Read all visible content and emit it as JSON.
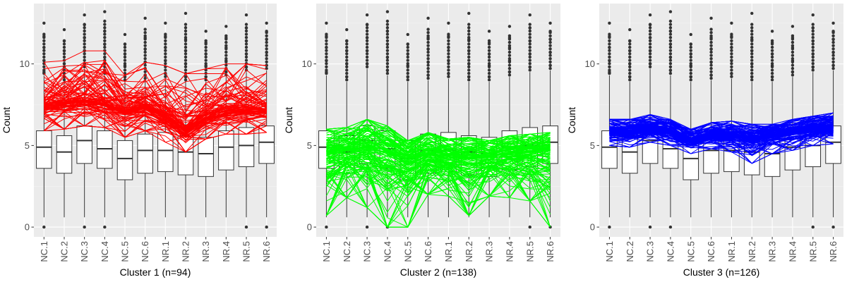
{
  "chart_data": [
    {
      "type": "box+line",
      "title": "",
      "xlabel": "Cluster 1 (n=94)",
      "ylabel": "Count",
      "ylim": [
        -0.6,
        13.7
      ],
      "yticks": [
        0,
        5,
        10
      ],
      "grid": true,
      "line_color": "#ff0000",
      "n_lines": 94,
      "categories": [
        "NC.1",
        "NC.2",
        "NC.3",
        "NC.4",
        "NC.5",
        "NC.6",
        "NR.1",
        "NR.2",
        "NR.3",
        "NR.4",
        "NR.5",
        "NR.6"
      ],
      "line_band": {
        "low": [
          5.9,
          6.0,
          6.2,
          6.1,
          5.5,
          5.9,
          5.2,
          4.6,
          5.4,
          5.7,
          5.7,
          5.8
        ],
        "median": [
          7.5,
          7.6,
          7.8,
          7.6,
          7.1,
          7.4,
          6.8,
          6.0,
          6.7,
          7.1,
          7.2,
          7.2
        ],
        "high": [
          10.1,
          10.2,
          10.8,
          10.8,
          9.3,
          10.1,
          9.9,
          9.4,
          9.7,
          10.0,
          10.0,
          9.9
        ]
      },
      "boxes": [
        {
          "q1": 3.6,
          "median": 4.9,
          "q3": 5.9,
          "whisker_low": 0.6,
          "whisker_high": 9.3,
          "outliers_high": [
            9.5,
            10.2,
            11.0,
            11.7,
            12.5
          ],
          "outliers_low": [
            0
          ]
        },
        {
          "q1": 3.3,
          "median": 4.6,
          "q3": 5.6,
          "whisker_low": 0.6,
          "whisker_high": 8.9,
          "outliers_high": [
            9.2,
            10.0,
            10.8,
            11.4,
            12.1
          ],
          "outliers_low": []
        },
        {
          "q1": 3.9,
          "median": 5.3,
          "q3": 6.2,
          "whisker_low": 0.6,
          "whisker_high": 9.7,
          "outliers_high": [
            10.0,
            10.8,
            11.6,
            12.4,
            13.0
          ],
          "outliers_low": [
            0
          ]
        },
        {
          "q1": 3.6,
          "median": 4.8,
          "q3": 5.9,
          "whisker_low": 0.6,
          "whisker_high": 9.3,
          "outliers_high": [
            9.6,
            10.4,
            11.2,
            12.0,
            13.2
          ],
          "outliers_low": [
            0
          ]
        },
        {
          "q1": 2.9,
          "median": 4.2,
          "q3": 5.3,
          "whisker_low": 0.6,
          "whisker_high": 8.9,
          "outliers_high": [
            9.2,
            9.9,
            10.6,
            11.2,
            11.8
          ],
          "outliers_low": []
        },
        {
          "q1": 3.3,
          "median": 4.7,
          "q3": 5.7,
          "whisker_low": 0.6,
          "whisker_high": 9.0,
          "outliers_high": [
            9.3,
            10.1,
            10.9,
            11.6,
            12.8
          ],
          "outliers_low": []
        },
        {
          "q1": 3.4,
          "median": 4.7,
          "q3": 5.8,
          "whisker_low": 0.6,
          "whisker_high": 9.1,
          "outliers_high": [
            9.4,
            10.2,
            11.0,
            11.7,
            12.5
          ],
          "outliers_low": []
        },
        {
          "q1": 3.2,
          "median": 4.6,
          "q3": 5.6,
          "whisker_low": 0.6,
          "whisker_high": 8.9,
          "outliers_high": [
            9.2,
            10.0,
            10.8,
            11.5,
            13.1
          ],
          "outliers_low": []
        },
        {
          "q1": 3.1,
          "median": 4.5,
          "q3": 5.5,
          "whisker_low": 0.6,
          "whisker_high": 8.9,
          "outliers_high": [
            9.2,
            9.9,
            10.6,
            11.3,
            12.0
          ],
          "outliers_low": []
        },
        {
          "q1": 3.5,
          "median": 4.9,
          "q3": 5.9,
          "whisker_low": 0.6,
          "whisker_high": 9.2,
          "outliers_high": [
            9.5,
            10.2,
            11.0,
            11.6,
            12.3
          ],
          "outliers_low": []
        },
        {
          "q1": 3.7,
          "median": 5.0,
          "q3": 6.1,
          "whisker_low": 0.6,
          "whisker_high": 9.5,
          "outliers_high": [
            9.8,
            10.6,
            11.4,
            12.2,
            13.0
          ],
          "outliers_low": [
            0
          ]
        },
        {
          "q1": 3.9,
          "median": 5.2,
          "q3": 6.2,
          "whisker_low": 0.6,
          "whisker_high": 9.6,
          "outliers_high": [
            9.9,
            10.7,
            11.5,
            12.0,
            12.5
          ],
          "outliers_low": [
            0
          ]
        }
      ]
    },
    {
      "type": "box+line",
      "title": "",
      "xlabel": "Cluster 2 (n=138)",
      "ylabel": "Count",
      "ylim": [
        -0.6,
        13.7
      ],
      "yticks": [
        0,
        5,
        10
      ],
      "grid": true,
      "line_color": "#00ff00",
      "n_lines": 138,
      "categories": [
        "NC.1",
        "NC.2",
        "NC.3",
        "NC.4",
        "NC.5",
        "NC.6",
        "NR.1",
        "NR.2",
        "NR.3",
        "NR.4",
        "NR.5",
        "NR.6"
      ],
      "line_band": {
        "low": [
          0.7,
          1.8,
          1.2,
          0.0,
          0.0,
          2.0,
          1.9,
          0.7,
          1.9,
          1.8,
          1.6,
          0.0
        ],
        "median": [
          4.6,
          4.7,
          4.9,
          4.6,
          4.1,
          4.4,
          4.3,
          4.2,
          4.3,
          4.5,
          4.6,
          4.7
        ],
        "high": [
          6.0,
          6.1,
          6.6,
          6.2,
          5.3,
          5.8,
          5.4,
          5.5,
          5.3,
          5.6,
          5.7,
          5.8
        ]
      },
      "boxes": [
        {
          "q1": 3.6,
          "median": 4.9,
          "q3": 5.9,
          "whisker_low": 0.6,
          "whisker_high": 9.3,
          "outliers_high": [
            9.5,
            10.2,
            11.0,
            11.7,
            12.5
          ],
          "outliers_low": [
            0
          ]
        },
        {
          "q1": 3.3,
          "median": 4.6,
          "q3": 5.6,
          "whisker_low": 0.6,
          "whisker_high": 8.9,
          "outliers_high": [
            9.2,
            10.0,
            10.8,
            11.4,
            12.1
          ],
          "outliers_low": []
        },
        {
          "q1": 3.9,
          "median": 5.3,
          "q3": 6.2,
          "whisker_low": 0.6,
          "whisker_high": 9.7,
          "outliers_high": [
            10.0,
            10.8,
            11.6,
            12.4,
            13.0
          ],
          "outliers_low": [
            0
          ]
        },
        {
          "q1": 3.6,
          "median": 4.8,
          "q3": 5.9,
          "whisker_low": 0.6,
          "whisker_high": 9.3,
          "outliers_high": [
            9.6,
            10.4,
            11.2,
            12.0,
            13.2
          ],
          "outliers_low": [
            0
          ]
        },
        {
          "q1": 2.9,
          "median": 4.2,
          "q3": 5.3,
          "whisker_low": 0.6,
          "whisker_high": 8.9,
          "outliers_high": [
            9.2,
            9.9,
            10.6,
            11.2,
            11.8
          ],
          "outliers_low": []
        },
        {
          "q1": 3.3,
          "median": 4.7,
          "q3": 5.7,
          "whisker_low": 0.6,
          "whisker_high": 9.0,
          "outliers_high": [
            9.3,
            10.1,
            10.9,
            11.6,
            12.8
          ],
          "outliers_low": []
        },
        {
          "q1": 3.4,
          "median": 4.7,
          "q3": 5.8,
          "whisker_low": 0.6,
          "whisker_high": 9.1,
          "outliers_high": [
            9.4,
            10.2,
            11.0,
            11.7,
            12.5
          ],
          "outliers_low": []
        },
        {
          "q1": 3.2,
          "median": 4.6,
          "q3": 5.6,
          "whisker_low": 0.6,
          "whisker_high": 8.9,
          "outliers_high": [
            9.2,
            10.0,
            10.8,
            11.5,
            13.1
          ],
          "outliers_low": []
        },
        {
          "q1": 3.1,
          "median": 4.5,
          "q3": 5.5,
          "whisker_low": 0.6,
          "whisker_high": 8.9,
          "outliers_high": [
            9.2,
            9.9,
            10.6,
            11.3,
            12.0
          ],
          "outliers_low": []
        },
        {
          "q1": 3.5,
          "median": 4.9,
          "q3": 5.9,
          "whisker_low": 0.6,
          "whisker_high": 9.2,
          "outliers_high": [
            9.5,
            10.2,
            11.0,
            11.6,
            12.3
          ],
          "outliers_low": []
        },
        {
          "q1": 3.7,
          "median": 5.0,
          "q3": 6.1,
          "whisker_low": 0.6,
          "whisker_high": 9.5,
          "outliers_high": [
            9.8,
            10.6,
            11.4,
            12.2,
            13.0
          ],
          "outliers_low": [
            0
          ]
        },
        {
          "q1": 3.9,
          "median": 5.2,
          "q3": 6.2,
          "whisker_low": 0.6,
          "whisker_high": 9.6,
          "outliers_high": [
            9.9,
            10.7,
            11.5,
            12.0,
            12.5
          ],
          "outliers_low": [
            0
          ]
        }
      ]
    },
    {
      "type": "box+line",
      "title": "",
      "xlabel": "Cluster 3 (n=126)",
      "ylabel": "Count",
      "ylim": [
        -0.6,
        13.7
      ],
      "yticks": [
        0,
        5,
        10
      ],
      "grid": true,
      "line_color": "#0000ff",
      "n_lines": 126,
      "categories": [
        "NC.1",
        "NC.2",
        "NC.3",
        "NC.4",
        "NC.5",
        "NC.6",
        "NR.1",
        "NR.2",
        "NR.3",
        "NR.4",
        "NR.5",
        "NR.6"
      ],
      "line_band": {
        "low": [
          5.0,
          4.9,
          5.2,
          5.0,
          4.5,
          4.8,
          4.6,
          3.9,
          4.5,
          4.7,
          5.0,
          5.1
        ],
        "median": [
          5.8,
          5.8,
          6.0,
          5.8,
          5.3,
          5.6,
          5.6,
          5.4,
          5.6,
          5.8,
          6.0,
          6.1
        ],
        "high": [
          6.6,
          6.6,
          6.9,
          6.6,
          6.0,
          6.4,
          6.5,
          6.3,
          6.3,
          6.6,
          6.8,
          7.0
        ]
      },
      "boxes": [
        {
          "q1": 3.6,
          "median": 4.9,
          "q3": 5.9,
          "whisker_low": 0.6,
          "whisker_high": 9.3,
          "outliers_high": [
            9.5,
            10.2,
            11.0,
            11.7,
            12.5
          ],
          "outliers_low": [
            0
          ]
        },
        {
          "q1": 3.3,
          "median": 4.6,
          "q3": 5.6,
          "whisker_low": 0.6,
          "whisker_high": 8.9,
          "outliers_high": [
            9.2,
            10.0,
            10.8,
            11.4,
            12.1
          ],
          "outliers_low": []
        },
        {
          "q1": 3.9,
          "median": 5.3,
          "q3": 6.2,
          "whisker_low": 0.6,
          "whisker_high": 9.7,
          "outliers_high": [
            10.0,
            10.8,
            11.6,
            12.4,
            13.0
          ],
          "outliers_low": [
            0
          ]
        },
        {
          "q1": 3.6,
          "median": 4.8,
          "q3": 5.9,
          "whisker_low": 0.6,
          "whisker_high": 9.3,
          "outliers_high": [
            9.6,
            10.4,
            11.2,
            12.0,
            13.2
          ],
          "outliers_low": [
            0
          ]
        },
        {
          "q1": 2.9,
          "median": 4.2,
          "q3": 5.3,
          "whisker_low": 0.6,
          "whisker_high": 8.9,
          "outliers_high": [
            9.2,
            9.9,
            10.6,
            11.2,
            11.8
          ],
          "outliers_low": []
        },
        {
          "q1": 3.3,
          "median": 4.7,
          "q3": 5.7,
          "whisker_low": 0.6,
          "whisker_high": 9.0,
          "outliers_high": [
            9.3,
            10.1,
            10.9,
            11.6,
            12.8
          ],
          "outliers_low": []
        },
        {
          "q1": 3.4,
          "median": 4.7,
          "q3": 5.8,
          "whisker_low": 0.6,
          "whisker_high": 9.1,
          "outliers_high": [
            9.4,
            10.2,
            11.0,
            11.7,
            12.5
          ],
          "outliers_low": []
        },
        {
          "q1": 3.2,
          "median": 4.6,
          "q3": 5.6,
          "whisker_low": 0.6,
          "whisker_high": 8.9,
          "outliers_high": [
            9.2,
            10.0,
            10.8,
            11.5,
            13.1
          ],
          "outliers_low": []
        },
        {
          "q1": 3.1,
          "median": 4.5,
          "q3": 5.5,
          "whisker_low": 0.6,
          "whisker_high": 8.9,
          "outliers_high": [
            9.2,
            9.9,
            10.6,
            11.3,
            12.0
          ],
          "outliers_low": []
        },
        {
          "q1": 3.5,
          "median": 4.9,
          "q3": 5.9,
          "whisker_low": 0.6,
          "whisker_high": 9.2,
          "outliers_high": [
            9.5,
            10.2,
            11.0,
            11.6,
            12.3
          ],
          "outliers_low": []
        },
        {
          "q1": 3.7,
          "median": 5.0,
          "q3": 6.1,
          "whisker_low": 0.6,
          "whisker_high": 9.5,
          "outliers_high": [
            9.8,
            10.6,
            11.4,
            12.2,
            13.0
          ],
          "outliers_low": [
            0
          ]
        },
        {
          "q1": 3.9,
          "median": 5.2,
          "q3": 6.2,
          "whisker_low": 0.6,
          "whisker_high": 9.6,
          "outliers_high": [
            9.9,
            10.7,
            11.5,
            12.0,
            12.5
          ],
          "outliers_low": [
            0
          ]
        }
      ]
    }
  ]
}
